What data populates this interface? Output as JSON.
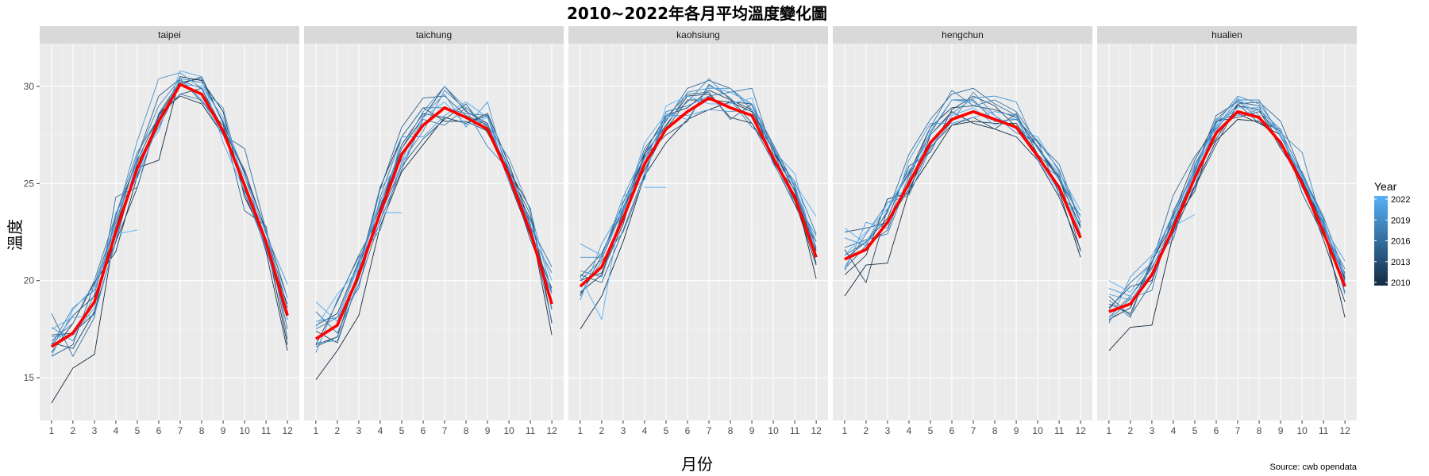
{
  "chart_data": {
    "type": "line",
    "title": "2010~2022年各月平均溫度變化圖",
    "xlabel": "月份",
    "ylabel": "溫度",
    "caption": "Source: cwb opendata",
    "x": [
      1,
      2,
      3,
      4,
      5,
      6,
      7,
      8,
      9,
      10,
      11,
      12
    ],
    "x_ticks": [
      "1",
      "2",
      "3",
      "4",
      "5",
      "6",
      "7",
      "8",
      "9",
      "10",
      "11",
      "12"
    ],
    "y_ticks": [
      "15",
      "20",
      "25",
      "30"
    ],
    "ylim": [
      12.8,
      32.2
    ],
    "xlim": [
      0.45,
      12.55
    ],
    "grid": true,
    "facets": [
      "taipei",
      "taichung",
      "kaohsiung",
      "hengchun",
      "hualien"
    ],
    "legend": {
      "title": "Year",
      "position": "right",
      "labels": [
        "2022",
        "2019",
        "2016",
        "2013",
        "2010"
      ],
      "color_low": "#132B43",
      "color_high": "#56B1F7"
    },
    "mean_color": "#ff0000",
    "years": [
      2010,
      2011,
      2012,
      2013,
      2014,
      2015,
      2016,
      2017,
      2018,
      2019,
      2020,
      2021,
      2022
    ],
    "panels": [
      {
        "name": "taipei",
        "mean": [
          16.6,
          17.3,
          18.9,
          22.5,
          25.8,
          28.2,
          30.1,
          29.6,
          27.7,
          24.9,
          22.0,
          18.2
        ],
        "offsets": [
          [
            -2.9,
            -1.8,
            -2.7,
            0.3,
            0.0,
            -2.0,
            0.4,
            0.7,
            1.0,
            -0.6,
            0.1,
            -1.5
          ],
          [
            -0.3,
            0.5,
            1.0,
            -1.0,
            -0.4,
            0.4,
            -0.6,
            -0.5,
            -0.2,
            0.1,
            -0.5,
            -1.8
          ],
          [
            0.2,
            -0.8,
            -0.5,
            -0.5,
            -1.0,
            0.3,
            0.1,
            0.8,
            0.4,
            0.6,
            0.6,
            0.9
          ],
          [
            0.6,
            0.0,
            -0.6,
            0.9,
            0.4,
            0.3,
            -0.5,
            0.3,
            0.1,
            0.8,
            0.5,
            0.4
          ],
          [
            0.0,
            0.9,
            0.3,
            -0.5,
            0.3,
            -0.3,
            0.0,
            0.9,
            0.4,
            -0.4,
            -0.3,
            0.6
          ],
          [
            -0.5,
            -0.6,
            0.9,
            0.5,
            0.6,
            1.3,
            0.3,
            -0.4,
            0.3,
            -1.3,
            0.8,
            -1.2
          ],
          [
            1.7,
            -1.2,
            -0.8,
            1.8,
            -1.0,
            0.4,
            0.2,
            0.3,
            -0.2,
            1.9,
            0.6,
            -0.7
          ],
          [
            0.3,
            0.5,
            1.1,
            0.9,
            0.8,
            0.2,
            -0.5,
            -0.3,
            0.1,
            0.1,
            -0.4,
            -0.2
          ],
          [
            0.1,
            1.3,
            0.6,
            0.3,
            0.6,
            0.8,
            0.3,
            0.6,
            0.5,
            0.7,
            -0.3,
            -0.2
          ],
          [
            1.0,
            -0.4,
            0.4,
            0.7,
            1.4,
            2.2,
            0.6,
            0.3,
            1.2,
            -0.2,
            -0.4,
            0.2
          ],
          [
            0.5,
            -0.1,
            -0.3,
            1.0,
            -0.5,
            -0.1,
            0.3,
            -0.3,
            -0.2,
            0.4,
            0.4,
            1.6
          ],
          [
            0.9,
            0.8,
            -0.7,
            -0.4,
            0.5,
            -0.5,
            0.7,
            0.9,
            -0.6,
            -0.3,
            0.6,
            -0.2
          ],
          [
            -0.5,
            1.2,
            0.8,
            0.2,
            -0.3,
            0.1,
            0.0,
            0.4,
            0.7,
            0.1,
            0.1,
            0.9
          ]
        ],
        "partial": {
          "start": 4,
          "end": 5,
          "values": [
            22.4,
            22.6
          ]
        }
      },
      {
        "name": "taichung",
        "mean": [
          17.0,
          17.7,
          20.3,
          23.5,
          26.5,
          28.0,
          28.9,
          28.4,
          27.8,
          25.4,
          22.5,
          18.8
        ],
        "offsets": [
          [
            -2.1,
            -1.3,
            -2.1,
            -0.7,
            -0.9,
            -1.0,
            -0.5,
            -0.3,
            0.8,
            0.6,
            0.4,
            -1.6
          ],
          [
            -0.3,
            -0.6,
            0.2,
            1.3,
            0.9,
            0.9,
            -0.7,
            -0.2,
            -0.1,
            0.3,
            1.2,
            -1.0
          ],
          [
            0.4,
            -0.9,
            -0.2,
            0.2,
            0.3,
            0.4,
            1.1,
            0.3,
            0.3,
            -0.3,
            -0.2,
            0.8
          ],
          [
            0.7,
            0.6,
            0.7,
            0.3,
            0.5,
            0.6,
            -0.5,
            -0.3,
            0.7,
            -0.3,
            0.7,
            0.1
          ],
          [
            -0.3,
            1.2,
            1.0,
            -0.1,
            -0.6,
            -0.7,
            -0.6,
            0.7,
            -0.2,
            0.1,
            -0.4,
            0.6
          ],
          [
            -0.4,
            -0.6,
            0.3,
            1.2,
            1.4,
            1.4,
            0.6,
            0.1,
            0.2,
            0.2,
            0.9,
            -0.3
          ],
          [
            1.4,
            -0.4,
            -0.5,
            -0.4,
            -0.8,
            0.3,
            -0.9,
            0.5,
            0.1,
            0.2,
            0.3,
            1.9
          ],
          [
            0.5,
            0.4,
            -0.7,
            0.8,
            0.9,
            0.9,
            0.0,
            0.2,
            0.7,
            0.3,
            0.3,
            -0.9
          ],
          [
            -0.7,
            1.3,
            0.9,
            -0.9,
            -0.4,
            -0.3,
            0.9,
            0.4,
            -0.9,
            0.3,
            -0.1,
            1.6
          ],
          [
            0.9,
            0.4,
            0.6,
            0.6,
            0.3,
            0.7,
            1.1,
            0.5,
            0.2,
            0.9,
            1.1,
            0.6
          ],
          [
            -0.2,
            -0.8,
            -0.2,
            1.2,
            -0.3,
            0.5,
            0.7,
            -0.5,
            1.4,
            -0.2,
            0.4,
            -0.2
          ],
          [
            1.9,
            0.2,
            0.5,
            -0.5,
            0.9,
            -0.6,
            -0.4,
            0.8,
            0.6,
            0.4,
            -0.2,
            0.5
          ],
          [
            0.6,
            1.6,
            0.3,
            0.5,
            -0.6,
            0.4,
            0.3,
            -0.4,
            0.6,
            -0.3,
            0.6,
            1.2
          ]
        ],
        "partial": {
          "start": 4,
          "end": 5,
          "values": [
            23.5,
            23.5
          ]
        }
      },
      {
        "name": "kaohsiung",
        "mean": [
          19.7,
          20.7,
          23.2,
          26.0,
          27.8,
          28.7,
          29.4,
          28.9,
          28.5,
          26.3,
          24.3,
          21.2
        ],
        "offsets": [
          [
            -2.2,
            -1.5,
            -1.2,
            -0.6,
            -0.7,
            -0.4,
            -0.6,
            0.3,
            0.2,
            0.4,
            0.3,
            -1.1
          ],
          [
            -0.3,
            -0.4,
            0.4,
            0.5,
            0.2,
            0.8,
            0.2,
            -0.5,
            -0.4,
            0.1,
            -0.2,
            -0.4
          ],
          [
            0.3,
            -0.3,
            -0.3,
            0.6,
            0.7,
            0.2,
            0.4,
            0.4,
            0.3,
            0.5,
            0.3,
            0.3
          ],
          [
            0.5,
            0.7,
            0.5,
            -0.3,
            0.0,
            0.6,
            -0.1,
            0.3,
            0.6,
            -0.2,
            0.4,
            0.5
          ],
          [
            -0.5,
            0.6,
            0.8,
            0.4,
            -0.3,
            -0.5,
            0.7,
            0.5,
            -0.4,
            -0.2,
            -0.4,
            0.8
          ],
          [
            0.6,
            -0.8,
            -0.6,
            -0.5,
            0.6,
            0.9,
            0.3,
            -0.6,
            0.6,
            0.7,
            0.5,
            -0.3
          ],
          [
            0.3,
            0.4,
            0.5,
            0.8,
            0.4,
            1.2,
            0.9,
            1.0,
            0.3,
            0.4,
            -0.4,
            0.4
          ],
          [
            -0.4,
            0.3,
            -0.7,
            -0.7,
            0.9,
            0.3,
            0.1,
            0.8,
            1.4,
            0.2,
            0.8,
            1.2
          ],
          [
            0.8,
            -0.5,
            0.3,
            0.3,
            0.5,
            0.5,
            1.0,
            0.4,
            -0.6,
            0.7,
            0.6,
            0.5
          ],
          [
            1.5,
            0.5,
            1.1,
            0.6,
            0.1,
            1.0,
            0.5,
            1.0,
            0.5,
            0.6,
            0.3,
            0.8
          ],
          [
            -0.7,
            1.2,
            0.6,
            0.1,
            0.7,
            -0.2,
            -0.6,
            -0.2,
            0.3,
            -0.3,
            -0.1,
            1.1
          ],
          [
            2.2,
            0.6,
            0.4,
            1.1,
            0.8,
            -0.4,
            0.6,
            0.8,
            0.6,
            0.4,
            1.2,
            0.1
          ],
          [
            0.5,
            -2.7,
            1.1,
            -0.8,
            1.2,
            0.8,
            -0.3,
            0.2,
            0.9,
            -0.1,
            0.7,
            2.1
          ]
        ],
        "partial": {
          "start": 4,
          "end": 5,
          "values": [
            24.8,
            24.8
          ]
        }
      },
      {
        "name": "hengchun",
        "mean": [
          21.1,
          21.6,
          23.0,
          25.0,
          27.1,
          28.3,
          28.7,
          28.3,
          27.9,
          26.4,
          24.8,
          22.2
        ],
        "offsets": [
          [
            -1.9,
            -0.8,
            -2.1,
            -0.4,
            -0.8,
            -0.3,
            -0.5,
            -0.2,
            0.2,
            0.1,
            -0.2,
            -1.0
          ],
          [
            -0.8,
            -0.3,
            1.2,
            -0.5,
            0.4,
            0.4,
            -0.6,
            -0.5,
            -0.5,
            -0.2,
            -0.5,
            -0.6
          ],
          [
            0.5,
            -1.7,
            0.7,
            0.5,
            0.8,
            0.6,
            0.3,
            0.5,
            0.5,
            0.5,
            0.4,
            0.6
          ],
          [
            0.0,
            0.4,
            0.2,
            0.9,
            -0.5,
            0.5,
            0.8,
            0.7,
            0.0,
            0.5,
            0.5,
            0.5
          ],
          [
            1.4,
            1.1,
            0.0,
            -0.3,
            -0.2,
            -0.3,
            -0.3,
            -0.5,
            0.7,
            0.1,
            0.6,
            -0.7
          ],
          [
            -0.5,
            0.2,
            -0.4,
            0.4,
            0.5,
            1.0,
            0.6,
            -0.1,
            0.4,
            0.8,
            0.9,
            0.8
          ],
          [
            0.2,
            0.4,
            0.5,
            1.5,
            1.2,
            1.3,
            1.2,
            0.8,
            0.6,
            0.4,
            0.4,
            1.1
          ],
          [
            0.6,
            0.5,
            -0.6,
            0.2,
            0.8,
            1.5,
            0.3,
            1.0,
            0.8,
            0.7,
            1.2,
            0.8
          ],
          [
            -0.4,
            0.8,
            1.0,
            -0.6,
            -0.3,
            -0.1,
            1.0,
            0.2,
            -0.3,
            0.8,
            -0.4,
            1.2
          ],
          [
            1.1,
            0.2,
            0.6,
            0.6,
            0.4,
            0.3,
            0.7,
            1.2,
            1.3,
            0.4,
            0.7,
            0.2
          ],
          [
            -0.6,
            1.4,
            -0.3,
            1.2,
            1.0,
            -0.2,
            -0.3,
            0.4,
            0.6,
            -0.2,
            0.5,
            1.1
          ],
          [
            1.6,
            0.3,
            1.0,
            -0.2,
            0.6,
            1.0,
            0.5,
            0.2,
            -0.1,
            1.0,
            0.8,
            1.4
          ],
          [
            0.2,
            0.9,
            0.7,
            0.7,
            -0.3,
            0.2,
            0.2,
            -0.3,
            0.5,
            -0.2,
            -0.2,
            0.7
          ]
        ],
        "partial": null
      },
      {
        "name": "hualien",
        "mean": [
          18.4,
          18.8,
          20.3,
          22.7,
          25.3,
          27.6,
          28.7,
          28.4,
          27.1,
          25.0,
          22.5,
          19.7
        ],
        "offsets": [
          [
            -2.0,
            -1.2,
            -2.6,
            -0.3,
            -0.4,
            -0.4,
            -0.4,
            -0.2,
            0.1,
            0.2,
            0.3,
            -1.6
          ],
          [
            -0.4,
            -0.2,
            0.7,
            0.3,
            -0.7,
            0.6,
            -0.1,
            -0.3,
            0.4,
            0.1,
            -0.4,
            -0.8
          ],
          [
            0.2,
            0.9,
            -0.3,
            0.2,
            0.3,
            -0.3,
            0.3,
            0.4,
            -0.3,
            0.2,
            0.3,
            0.4
          ],
          [
            0.4,
            -0.5,
            0.6,
            0.7,
            0.9,
            0.6,
            -0.3,
            0.3,
            0.4,
            0.1,
            0.5,
            0.3
          ],
          [
            -0.3,
            0.4,
            0.4,
            -0.2,
            -0.5,
            -0.6,
            0.4,
            -0.3,
            0.7,
            -0.5,
            -0.2,
            0.7
          ],
          [
            0.8,
            -0.6,
            -0.4,
            0.6,
            0.4,
            0.9,
            0.5,
            0.6,
            -0.2,
            0.6,
            0.6,
            -0.3
          ],
          [
            0.1,
            1.1,
            0.6,
            1.7,
            1.1,
            0.2,
            0.4,
            0.8,
            1.1,
            0.5,
            -0.1,
            0.5
          ],
          [
            -0.5,
            0.3,
            -0.8,
            0.9,
            0.3,
            0.7,
            0.6,
            -0.1,
            0.6,
            0.5,
            0.8,
            0.6
          ],
          [
            0.6,
            -0.7,
            0.9,
            -0.6,
            0.6,
            0.5,
            0.8,
            0.7,
            0.5,
            1.6,
            0.2,
            0.9
          ],
          [
            1.2,
            0.4,
            0.3,
            0.3,
            0.7,
            0.3,
            0.6,
            0.9,
            0.3,
            0.4,
            0.7,
            -0.4
          ],
          [
            -0.6,
            1.4,
            1.0,
            0.5,
            -0.4,
            0.7,
            -0.2,
            0.4,
            0.7,
            -0.2,
            0.3,
            1.3
          ],
          [
            0.9,
            0.2,
            0.1,
            -0.3,
            0.5,
            0.1,
            0.7,
            0.1,
            -0.1,
            0.5,
            0.4,
            0.6
          ],
          [
            1.6,
            0.6,
            0.7,
            0.8,
            0.2,
            0.4,
            0.2,
            0.5,
            0.4,
            0.3,
            0.6,
            0.2
          ]
        ],
        "partial": {
          "start": 4,
          "end": 5,
          "values": [
            22.8,
            23.4
          ]
        }
      }
    ]
  }
}
